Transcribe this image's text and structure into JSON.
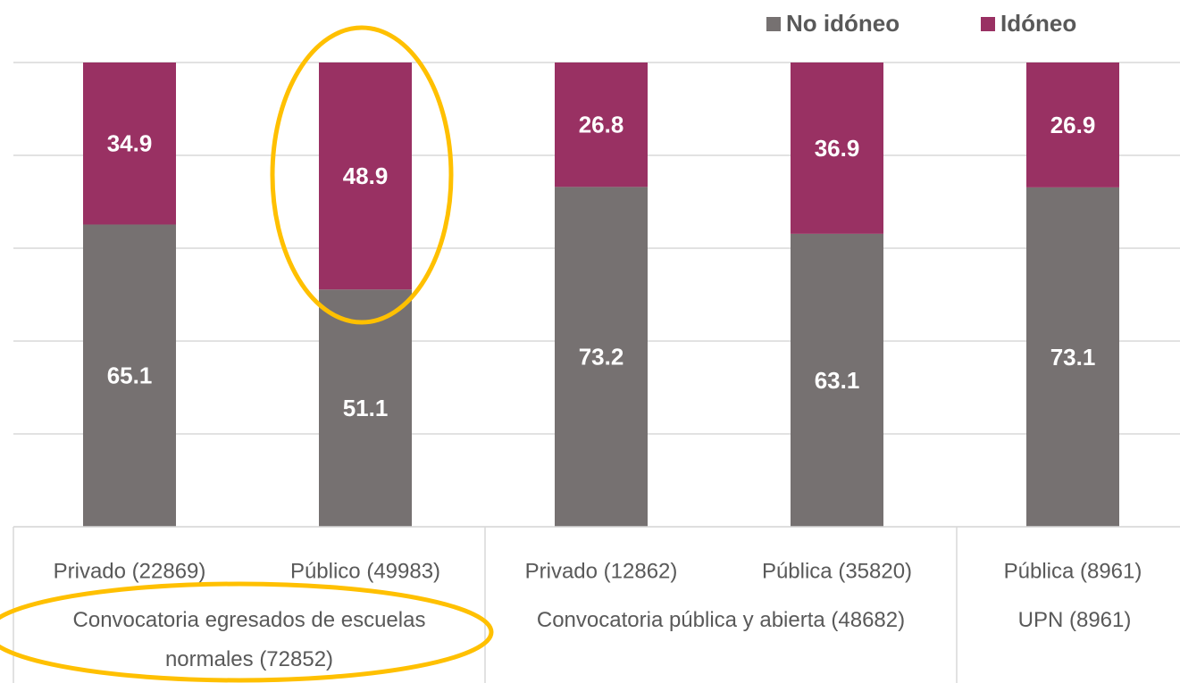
{
  "chart_data": {
    "type": "stacked_bar",
    "categories": [
      "Privado (22869)",
      "Público (49983)",
      "Privado (12862)",
      "Pública (35820)",
      "Pública (8961)"
    ],
    "groups": [
      {
        "name": "Convocatoria egresados de escuelas normales (72852)",
        "span": 2
      },
      {
        "name": "Convocatoria pública y abierta (48682)",
        "span": 2
      },
      {
        "name": "UPN (8961)",
        "span": 1
      }
    ],
    "series": [
      {
        "name": "No idóneo",
        "color": "#767171",
        "values": [
          65.1,
          51.1,
          73.2,
          63.1,
          73.1
        ]
      },
      {
        "name": "Idóneo",
        "color": "#993163",
        "values": [
          34.9,
          48.9,
          26.8,
          36.9,
          26.9
        ]
      }
    ],
    "ylim": [
      0,
      100
    ],
    "yticks": [
      0,
      20,
      40,
      60,
      80,
      100
    ],
    "grid": true,
    "legend": "top-right"
  }
}
